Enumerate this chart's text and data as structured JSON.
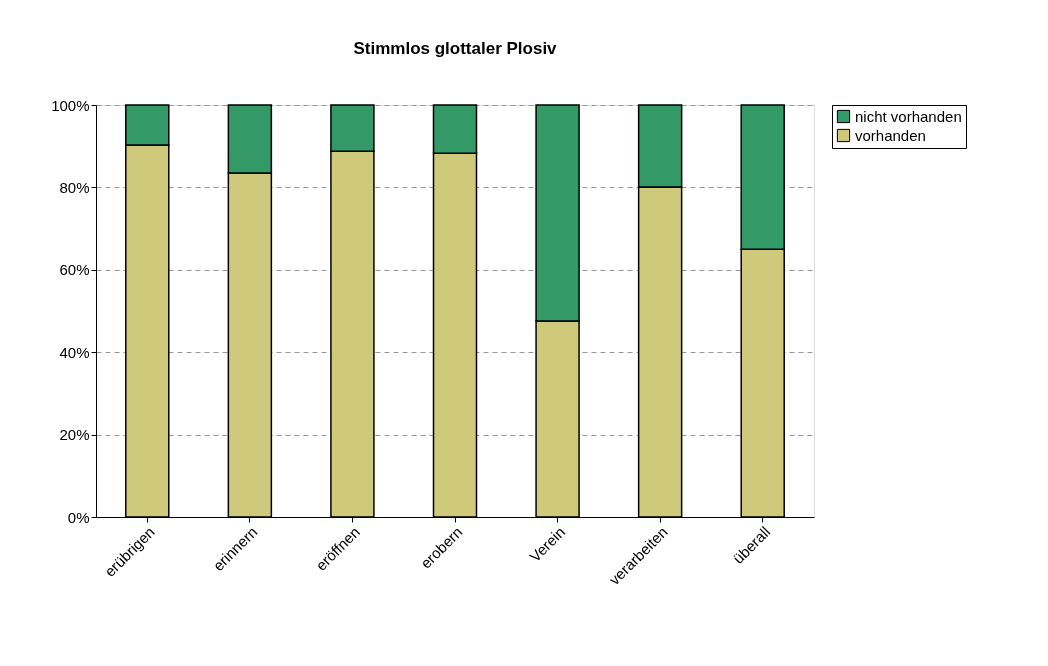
{
  "chart_data": {
    "type": "bar",
    "title": "Stimmlos glottaler Plosiv",
    "stacked": true,
    "categories": [
      "erübrigen",
      "erinnern",
      "eröffnen",
      "erobern",
      "Verein",
      "verarbeiten",
      "überall"
    ],
    "series": [
      {
        "name": "vorhanden",
        "color": "#cfc97c",
        "values": [
          90.3,
          83.5,
          88.8,
          88.3,
          47.6,
          80.1,
          65.0
        ]
      },
      {
        "name": "nicht vorhanden",
        "color": "#339966",
        "values": [
          9.7,
          16.5,
          11.2,
          11.7,
          52.4,
          19.9,
          35.0
        ]
      }
    ],
    "ylim": [
      0,
      100
    ],
    "yticks": [
      {
        "value": 0,
        "label": "0%"
      },
      {
        "value": 20,
        "label": "20%"
      },
      {
        "value": 40,
        "label": "40%"
      },
      {
        "value": 60,
        "label": "60%"
      },
      {
        "value": 80,
        "label": "80%"
      },
      {
        "value": 100,
        "label": "100%"
      }
    ],
    "grid": "y",
    "legend": "right"
  }
}
